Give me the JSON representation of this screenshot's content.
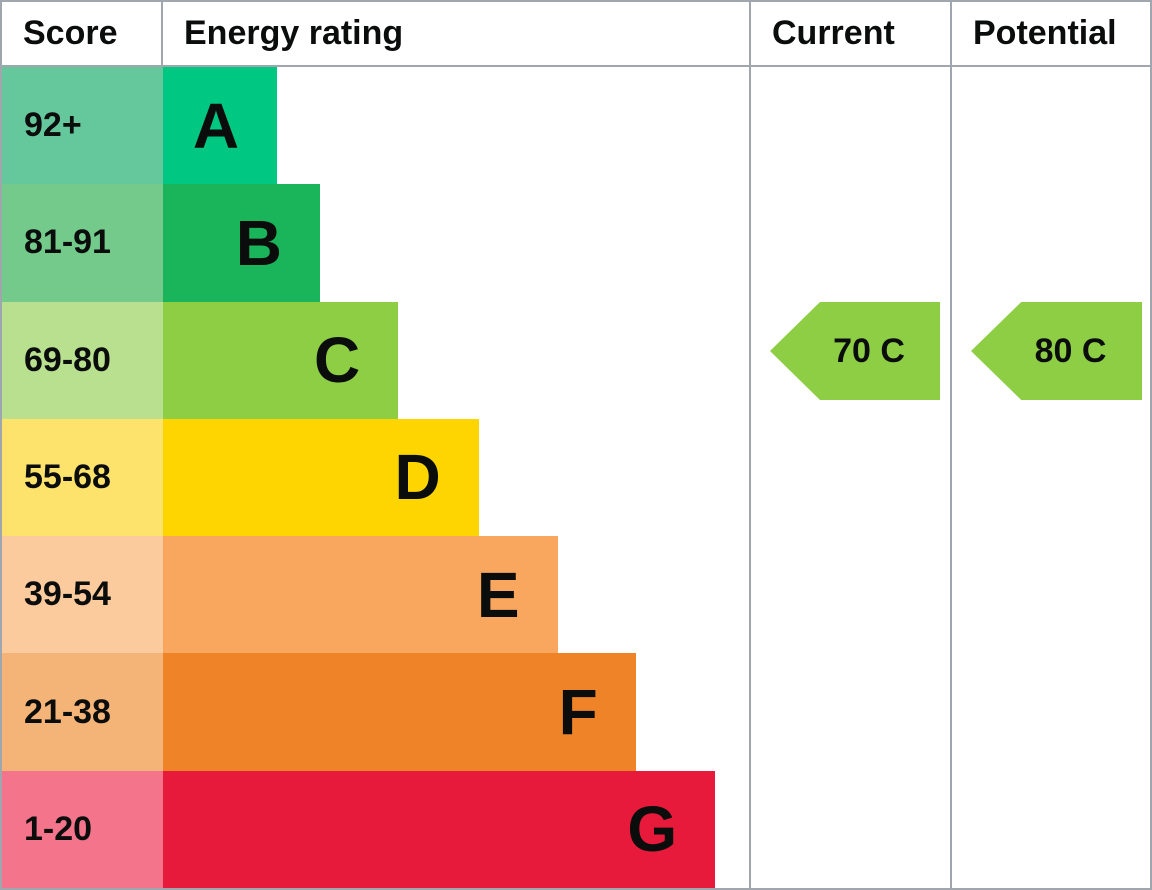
{
  "header": {
    "score_label": "Score",
    "energy_rating_label": "Energy rating",
    "current_label": "Current",
    "potential_label": "Potential"
  },
  "colors": {
    "border": "#a0a6ad",
    "text": "#0b0c0c",
    "marker_green": "#8dce45"
  },
  "bands": [
    {
      "score_range": "92+",
      "letter": "A",
      "score_bg": "#65c89d",
      "bar_bg": "#00c781",
      "bar_width_pct": 19.4
    },
    {
      "score_range": "81-91",
      "letter": "B",
      "score_bg": "#73ca8b",
      "bar_bg": "#1ab45a",
      "bar_width_pct": 26.7
    },
    {
      "score_range": "69-80",
      "letter": "C",
      "score_bg": "#b8e08f",
      "bar_bg": "#8dce45",
      "bar_width_pct": 40.0
    },
    {
      "score_range": "55-68",
      "letter": "D",
      "score_bg": "#fde36b",
      "bar_bg": "#ffd500",
      "bar_width_pct": 53.7
    },
    {
      "score_range": "39-54",
      "letter": "E",
      "score_bg": "#fbca9d",
      "bar_bg": "#f9a65f",
      "bar_width_pct": 67.1
    },
    {
      "score_range": "21-38",
      "letter": "F",
      "score_bg": "#f4b377",
      "bar_bg": "#ee8327",
      "bar_width_pct": 80.4
    },
    {
      "score_range": "1-20",
      "letter": "G",
      "score_bg": "#f4758b",
      "bar_bg": "#e71a3b",
      "bar_width_pct": 93.9
    }
  ],
  "markers": {
    "current": {
      "label": "70 C",
      "value": 70,
      "rating": "C",
      "bg": "#8dce45"
    },
    "potential": {
      "label": "80 C",
      "value": 80,
      "rating": "C",
      "bg": "#8dce45"
    }
  },
  "chart_data": {
    "type": "bar",
    "title": "Energy rating",
    "columns": [
      "Score",
      "Energy rating",
      "Current",
      "Potential"
    ],
    "categories": [
      "A",
      "B",
      "C",
      "D",
      "E",
      "F",
      "G"
    ],
    "score_ranges": [
      "92+",
      "81-91",
      "69-80",
      "55-68",
      "39-54",
      "21-38",
      "1-20"
    ],
    "bar_width_pct": [
      19.4,
      26.7,
      40.0,
      53.7,
      67.1,
      80.4,
      93.9
    ],
    "band_colors": [
      "#00c781",
      "#1ab45a",
      "#8dce45",
      "#ffd500",
      "#f9a65f",
      "#ee8327",
      "#e71a3b"
    ],
    "score_cell_colors": [
      "#65c89d",
      "#73ca8b",
      "#b8e08f",
      "#fde36b",
      "#fbca9d",
      "#f4b377",
      "#f4758b"
    ],
    "markers": [
      {
        "name": "Current",
        "value": 70,
        "rating": "C"
      },
      {
        "name": "Potential",
        "value": 80,
        "rating": "C"
      }
    ],
    "legend_position": "none",
    "grid": false
  }
}
